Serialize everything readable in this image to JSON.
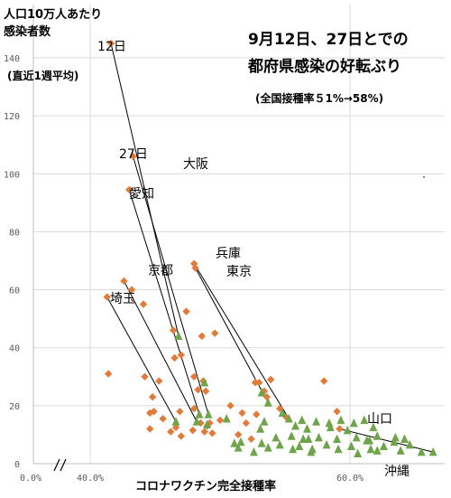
{
  "chart_data": {
    "type": "scatter",
    "title": [
      "9月12日、27日とでの",
      "都府県感染の好転ぶり"
    ],
    "subtitle": "(全国接種率５1%→58%)",
    "ylabel": [
      "人口10万人あたり",
      "感染者数",
      "(直近1週平均)"
    ],
    "xlabel": "コロナワクチン完全接種率",
    "x_ticks": [
      "0.0%",
      "40.0%",
      "60.0%"
    ],
    "y_ticks": [
      "0",
      "20",
      "40",
      "60",
      "80",
      "100",
      "120",
      "140"
    ],
    "xlim": [
      32,
      67
    ],
    "ylim": [
      0,
      150
    ],
    "grid": true,
    "axis_break": true,
    "series": [
      {
        "name": "12日",
        "marker": "diamond",
        "color": "#E07B39",
        "points": [
          [
            41.6,
            145
          ],
          [
            43.3,
            106
          ],
          [
            43.0,
            94.5
          ],
          [
            48.0,
            69
          ],
          [
            48.1,
            67.5
          ],
          [
            42.6,
            63
          ],
          [
            43.2,
            60
          ],
          [
            41.3,
            57.5
          ],
          [
            44.1,
            55
          ],
          [
            47.4,
            52.5
          ],
          [
            46.4,
            46
          ],
          [
            49.6,
            45
          ],
          [
            48.6,
            44
          ],
          [
            47.0,
            37.5
          ],
          [
            46.5,
            36.5
          ],
          [
            41.4,
            31
          ],
          [
            44.2,
            30
          ],
          [
            45.3,
            28.5
          ],
          [
            48.0,
            30
          ],
          [
            48.7,
            28.5
          ],
          [
            52.7,
            28
          ],
          [
            53.0,
            28
          ],
          [
            53.9,
            29
          ],
          [
            58.0,
            28.5
          ],
          [
            44.8,
            23
          ],
          [
            48.3,
            25.5
          ],
          [
            48.9,
            25
          ],
          [
            53.4,
            25
          ],
          [
            53.6,
            23
          ],
          [
            44.9,
            18
          ],
          [
            44.6,
            17.5
          ],
          [
            46.9,
            18
          ],
          [
            50.8,
            20
          ],
          [
            51.7,
            17.5
          ],
          [
            52.8,
            17
          ],
          [
            54.6,
            19
          ],
          [
            59.0,
            18
          ],
          [
            48.0,
            19
          ],
          [
            45.6,
            15.5
          ],
          [
            48.5,
            14
          ],
          [
            49.2,
            14
          ],
          [
            50.0,
            15
          ],
          [
            44.6,
            12
          ],
          [
            46.2,
            11
          ],
          [
            48.8,
            11
          ],
          [
            49.0,
            13
          ],
          [
            49.4,
            10.5
          ],
          [
            47.0,
            9.5
          ],
          [
            55.1,
            16
          ],
          [
            51.4,
            10
          ],
          [
            52.4,
            8.5
          ],
          [
            59.2,
            12
          ],
          [
            46.6,
            12.5
          ],
          [
            47.9,
            11.5
          ],
          [
            52.0,
            14
          ]
        ]
      },
      {
        "name": "27日",
        "marker": "triangle",
        "color": "#70A44A",
        "points": [
          [
            46.8,
            44
          ],
          [
            48.8,
            28
          ],
          [
            53.2,
            24.5
          ],
          [
            53.7,
            21
          ],
          [
            54.8,
            17.5
          ],
          [
            48.4,
            17
          ],
          [
            49.1,
            17
          ],
          [
            46.6,
            14.5
          ],
          [
            48.2,
            14.5
          ],
          [
            49.0,
            13.5
          ],
          [
            50.5,
            15.5
          ],
          [
            53.4,
            14.5
          ],
          [
            55.3,
            15.5
          ],
          [
            56.3,
            15
          ],
          [
            57.4,
            14.5
          ],
          [
            58.4,
            14
          ],
          [
            59.3,
            15
          ],
          [
            60.3,
            14
          ],
          [
            61.1,
            15
          ],
          [
            55.8,
            13
          ],
          [
            53.1,
            12
          ],
          [
            56.7,
            12
          ],
          [
            58.5,
            12.5
          ],
          [
            59.8,
            11.5
          ],
          [
            61.8,
            12.5
          ],
          [
            54.3,
            9
          ],
          [
            55.5,
            9.5
          ],
          [
            56.4,
            8.5
          ],
          [
            57.6,
            9
          ],
          [
            59.0,
            8.5
          ],
          [
            60.5,
            9
          ],
          [
            61.5,
            8
          ],
          [
            62.1,
            9.5
          ],
          [
            63.5,
            9
          ],
          [
            64.2,
            8.5
          ],
          [
            64.6,
            6.5
          ],
          [
            51.1,
            7
          ],
          [
            51.6,
            7.5
          ],
          [
            53.2,
            7
          ],
          [
            54.6,
            6.5
          ],
          [
            56.1,
            6
          ],
          [
            58.2,
            6.5
          ],
          [
            60.1,
            6
          ],
          [
            62.6,
            6
          ],
          [
            63.4,
            7.5
          ],
          [
            51.4,
            5.5
          ],
          [
            53.7,
            5.5
          ],
          [
            55.6,
            5
          ],
          [
            57.1,
            5
          ],
          [
            59.1,
            5
          ],
          [
            61.6,
            5
          ],
          [
            62.1,
            4.5
          ],
          [
            63.9,
            4.5
          ],
          [
            65.5,
            4
          ],
          [
            66.4,
            4
          ],
          [
            60.6,
            3.5
          ],
          [
            57.0,
            4
          ],
          [
            52.6,
            4
          ],
          [
            56.8,
            8.5
          ],
          [
            61.3,
            8
          ]
        ]
      }
    ],
    "arrows": [
      {
        "label": "沖縄",
        "from": [
          41.6,
          145
        ],
        "to": [
          46.8,
          44
        ]
      },
      {
        "label": "大阪",
        "from": [
          43.3,
          106
        ],
        "to": [
          49.1,
          17
        ]
      },
      {
        "label": "愛知",
        "from": [
          43.0,
          94.5
        ],
        "to": [
          48.4,
          17
        ]
      },
      {
        "label": "兵庫",
        "from": [
          48.0,
          69
        ],
        "to": [
          55.3,
          15.5
        ]
      },
      {
        "label": "東京",
        "from": [
          48.1,
          67.5
        ],
        "to": [
          53.7,
          21
        ]
      },
      {
        "label": "京都",
        "from": [
          42.6,
          63
        ],
        "to": [
          48.2,
          14.5
        ]
      },
      {
        "label": "埼玉",
        "from": [
          41.3,
          57.5
        ],
        "to": [
          46.6,
          14.5
        ]
      },
      {
        "label": "山口",
        "from": [
          59.2,
          12
        ],
        "to": [
          66.4,
          4
        ]
      }
    ],
    "annotations": [
      "12日",
      "27日",
      "沖縄",
      "大阪",
      "愛知",
      "兵庫",
      "東京",
      "京都",
      "埼玉",
      "山口"
    ]
  }
}
